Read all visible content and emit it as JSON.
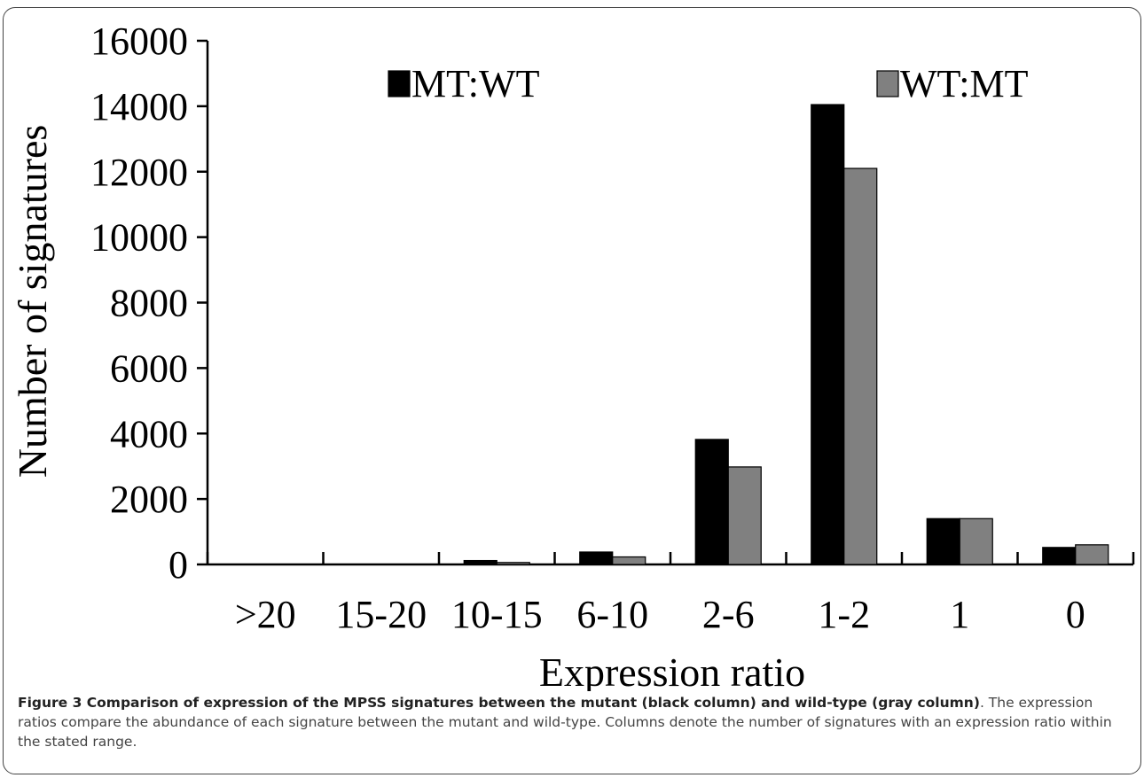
{
  "chart_data": {
    "type": "bar",
    "title": "",
    "xlabel": "Expression ratio",
    "ylabel": "Number of signatures",
    "categories": [
      ">20",
      "15-20",
      "10-15",
      "6-10",
      "2-6",
      "1-2",
      "1",
      "0"
    ],
    "series": [
      {
        "name": "MT:WT",
        "color": "#000000",
        "values": [
          0,
          0,
          120,
          380,
          3820,
          14050,
          1400,
          520
        ]
      },
      {
        "name": "WT:MT",
        "color": "#808080",
        "values": [
          0,
          0,
          60,
          230,
          2980,
          12100,
          1400,
          600
        ]
      }
    ],
    "ylim": [
      0,
      16000
    ],
    "yticks": [
      0,
      2000,
      4000,
      6000,
      8000,
      10000,
      12000,
      14000,
      16000
    ],
    "grid": false,
    "legend": "top"
  },
  "caption": {
    "lead": "Figure 3 Comparison of expression of the MPSS signatures between the mutant (black column) and wild-type (gray column)",
    "body": ". The expression ratios compare the abundance of each signature between the mutant and wild-type. Columns denote the number of signatures with an expression ratio within the stated range."
  }
}
